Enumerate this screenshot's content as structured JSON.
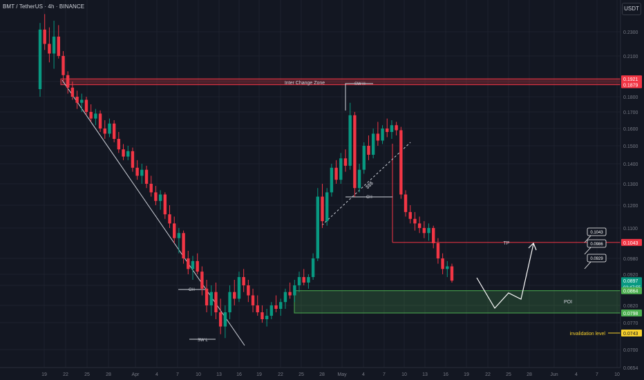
{
  "header": {
    "symbol_title": "BMT / TetherUS · 4h · BINANCE",
    "currency_button": "USDT"
  },
  "colors": {
    "background": "#131722",
    "grid": "#1e222d",
    "up_candle": "#089981",
    "down_candle": "#f23645",
    "resistance_zone": "#f23645",
    "poi_zone": "#4caf50",
    "tp_line": "#f23645",
    "invalidation": "#f7d02c",
    "trendline": "#d1d4dc",
    "axis_text": "#787b86"
  },
  "chart_data": {
    "type": "candlestick",
    "y_axis": {
      "ticks": [
        "0.2300",
        "0.2100",
        "0.1900",
        "0.1800",
        "0.1700",
        "0.1600",
        "0.1500",
        "0.1400",
        "0.1300",
        "0.1200",
        "0.1100",
        "0.0980",
        "0.0920",
        "0.0880",
        "0.0820",
        "0.0770",
        "0.0700",
        "0.0654"
      ],
      "tick_values": [
        0.23,
        0.21,
        0.19,
        0.18,
        0.17,
        0.16,
        0.15,
        0.14,
        0.13,
        0.12,
        0.11,
        0.098,
        0.092,
        0.088,
        0.082,
        0.077,
        0.07,
        0.0654
      ]
    },
    "x_axis": {
      "ticks": [
        "19",
        "22",
        "25",
        "28",
        "Apr",
        "4",
        "7",
        "10",
        "13",
        "16",
        "19",
        "22",
        "25",
        "28",
        "May",
        "4",
        "7",
        "10",
        "13",
        "16",
        "19",
        "22",
        "25",
        "28",
        "Jun",
        "4",
        "7",
        "10"
      ]
    },
    "price_labels": [
      {
        "value": "0.1921",
        "kind": "zone-top"
      },
      {
        "value": "0.1879",
        "kind": "zone-bottom"
      },
      {
        "value": "0.1043",
        "kind": "tp"
      },
      {
        "value": "0.0897",
        "kind": "last",
        "countdown": "02:47:55"
      },
      {
        "value": "0.0864",
        "kind": "poi-top"
      },
      {
        "value": "0.0798",
        "kind": "poi-bottom"
      },
      {
        "value": "0.0743",
        "kind": "invalidation"
      }
    ],
    "zones": [
      {
        "name": "Inter Change Zone",
        "top": 0.1921,
        "bottom": 0.1879
      },
      {
        "name": "POI",
        "top": 0.0864,
        "bottom": 0.0798
      }
    ],
    "lines": [
      {
        "name": "TP",
        "value": 0.1043
      },
      {
        "name": "invalidation level",
        "value": 0.0743
      }
    ],
    "annotations": [
      "SW H",
      "SW L",
      "CH",
      "CH",
      "$$$",
      "TP",
      "POI",
      "invalidation level"
    ],
    "target_boxes": [
      "0.1043",
      "0.0986",
      "0.0929"
    ],
    "candles": [
      [
        0.185,
        0.238,
        0.18,
        0.232
      ],
      [
        0.232,
        0.246,
        0.215,
        0.22
      ],
      [
        0.22,
        0.234,
        0.205,
        0.212
      ],
      [
        0.212,
        0.24,
        0.2,
        0.226
      ],
      [
        0.226,
        0.236,
        0.208,
        0.21
      ],
      [
        0.21,
        0.214,
        0.19,
        0.195
      ],
      [
        0.195,
        0.198,
        0.182,
        0.186
      ],
      [
        0.186,
        0.19,
        0.178,
        0.18
      ],
      [
        0.18,
        0.184,
        0.172,
        0.176
      ],
      [
        0.176,
        0.182,
        0.17,
        0.178
      ],
      [
        0.178,
        0.18,
        0.168,
        0.17
      ],
      [
        0.17,
        0.175,
        0.164,
        0.166
      ],
      [
        0.166,
        0.172,
        0.162,
        0.169
      ],
      [
        0.169,
        0.171,
        0.158,
        0.16
      ],
      [
        0.16,
        0.165,
        0.154,
        0.157
      ],
      [
        0.157,
        0.166,
        0.155,
        0.163
      ],
      [
        0.163,
        0.165,
        0.152,
        0.154
      ],
      [
        0.154,
        0.158,
        0.146,
        0.148
      ],
      [
        0.148,
        0.151,
        0.142,
        0.144
      ],
      [
        0.144,
        0.15,
        0.142,
        0.147
      ],
      [
        0.147,
        0.149,
        0.136,
        0.138
      ],
      [
        0.138,
        0.142,
        0.132,
        0.134
      ],
      [
        0.134,
        0.14,
        0.13,
        0.137
      ],
      [
        0.137,
        0.139,
        0.128,
        0.13
      ],
      [
        0.13,
        0.134,
        0.124,
        0.126
      ],
      [
        0.126,
        0.129,
        0.12,
        0.122
      ],
      [
        0.122,
        0.127,
        0.118,
        0.125
      ],
      [
        0.125,
        0.126,
        0.114,
        0.116
      ],
      [
        0.116,
        0.12,
        0.11,
        0.112
      ],
      [
        0.112,
        0.115,
        0.104,
        0.106
      ],
      [
        0.106,
        0.11,
        0.1,
        0.108
      ],
      [
        0.108,
        0.109,
        0.096,
        0.098
      ],
      [
        0.098,
        0.101,
        0.092,
        0.094
      ],
      [
        0.094,
        0.099,
        0.09,
        0.097
      ],
      [
        0.097,
        0.1,
        0.092,
        0.093
      ],
      [
        0.093,
        0.095,
        0.085,
        0.087
      ],
      [
        0.087,
        0.09,
        0.08,
        0.082
      ],
      [
        0.082,
        0.088,
        0.079,
        0.086
      ],
      [
        0.086,
        0.089,
        0.078,
        0.08
      ],
      [
        0.08,
        0.084,
        0.074,
        0.076
      ],
      [
        0.076,
        0.082,
        0.073,
        0.08
      ],
      [
        0.08,
        0.088,
        0.078,
        0.086
      ],
      [
        0.086,
        0.09,
        0.082,
        0.084
      ],
      [
        0.084,
        0.093,
        0.083,
        0.091
      ],
      [
        0.091,
        0.094,
        0.086,
        0.088
      ],
      [
        0.088,
        0.09,
        0.083,
        0.085
      ],
      [
        0.085,
        0.087,
        0.08,
        0.082
      ],
      [
        0.082,
        0.085,
        0.079,
        0.08
      ],
      [
        0.08,
        0.082,
        0.077,
        0.078
      ],
      [
        0.078,
        0.081,
        0.076,
        0.079
      ],
      [
        0.079,
        0.083,
        0.078,
        0.082
      ],
      [
        0.082,
        0.085,
        0.08,
        0.081
      ],
      [
        0.081,
        0.084,
        0.079,
        0.083
      ],
      [
        0.083,
        0.087,
        0.081,
        0.086
      ],
      [
        0.086,
        0.089,
        0.084,
        0.085
      ],
      [
        0.085,
        0.09,
        0.083,
        0.088
      ],
      [
        0.088,
        0.093,
        0.086,
        0.091
      ],
      [
        0.091,
        0.094,
        0.088,
        0.089
      ],
      [
        0.089,
        0.092,
        0.087,
        0.091
      ],
      [
        0.091,
        0.1,
        0.09,
        0.098
      ],
      [
        0.098,
        0.128,
        0.097,
        0.124
      ],
      [
        0.124,
        0.13,
        0.11,
        0.113
      ],
      [
        0.113,
        0.128,
        0.111,
        0.126
      ],
      [
        0.126,
        0.14,
        0.124,
        0.138
      ],
      [
        0.138,
        0.142,
        0.13,
        0.132
      ],
      [
        0.132,
        0.146,
        0.13,
        0.143
      ],
      [
        0.143,
        0.148,
        0.136,
        0.139
      ],
      [
        0.139,
        0.176,
        0.137,
        0.168
      ],
      [
        0.168,
        0.17,
        0.124,
        0.128
      ],
      [
        0.128,
        0.14,
        0.126,
        0.137
      ],
      [
        0.137,
        0.152,
        0.135,
        0.15
      ],
      [
        0.15,
        0.156,
        0.142,
        0.145
      ],
      [
        0.145,
        0.16,
        0.143,
        0.157
      ],
      [
        0.157,
        0.164,
        0.15,
        0.153
      ],
      [
        0.153,
        0.162,
        0.151,
        0.16
      ],
      [
        0.16,
        0.166,
        0.155,
        0.158
      ],
      [
        0.158,
        0.165,
        0.154,
        0.162
      ],
      [
        0.162,
        0.164,
        0.156,
        0.159
      ],
      [
        0.159,
        0.161,
        0.123,
        0.125
      ],
      [
        0.125,
        0.127,
        0.115,
        0.117
      ],
      [
        0.117,
        0.12,
        0.112,
        0.114
      ],
      [
        0.114,
        0.117,
        0.109,
        0.112
      ],
      [
        0.112,
        0.115,
        0.108,
        0.11
      ],
      [
        0.11,
        0.113,
        0.106,
        0.108
      ],
      [
        0.108,
        0.112,
        0.105,
        0.11
      ],
      [
        0.11,
        0.111,
        0.102,
        0.104
      ],
      [
        0.104,
        0.106,
        0.096,
        0.098
      ],
      [
        0.098,
        0.1,
        0.092,
        0.094
      ],
      [
        0.094,
        0.097,
        0.091,
        0.095
      ],
      [
        0.095,
        0.096,
        0.089,
        0.0897
      ]
    ]
  }
}
